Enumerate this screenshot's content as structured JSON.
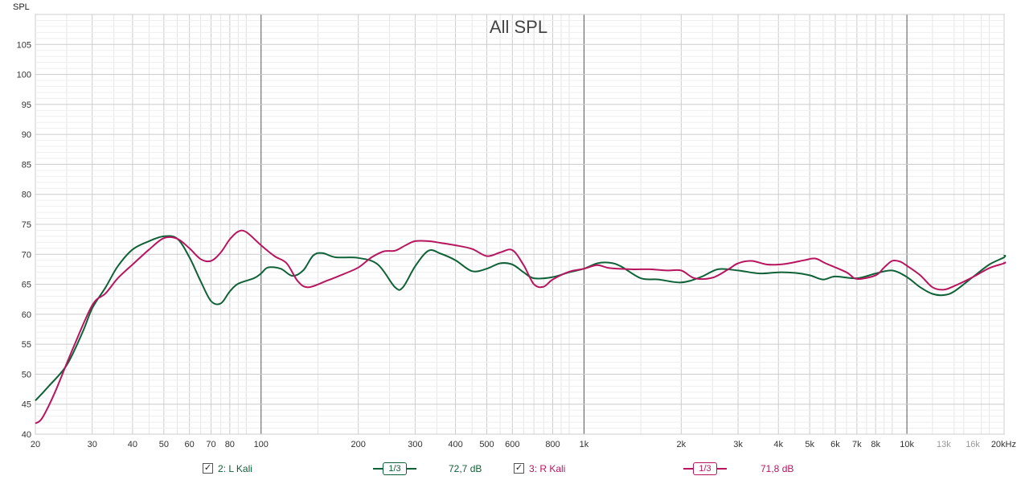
{
  "chart_data": {
    "type": "line",
    "title": "All SPL",
    "ylabel": "SPL",
    "xscale": "log",
    "xlim": [
      20,
      20000
    ],
    "ylim": [
      40,
      110
    ],
    "grid": true,
    "y_ticks": [
      "40",
      "45",
      "50",
      "55",
      "60",
      "65",
      "70",
      "75",
      "80",
      "85",
      "90",
      "95",
      "100",
      "105"
    ],
    "x_ticks": [
      {
        "v": 20,
        "label": "20"
      },
      {
        "v": 30,
        "label": "30"
      },
      {
        "v": 40,
        "label": "40"
      },
      {
        "v": 50,
        "label": "50"
      },
      {
        "v": 60,
        "label": "60"
      },
      {
        "v": 70,
        "label": "70"
      },
      {
        "v": 80,
        "label": "80"
      },
      {
        "v": 100,
        "label": "100"
      },
      {
        "v": 200,
        "label": "200"
      },
      {
        "v": 300,
        "label": "300"
      },
      {
        "v": 400,
        "label": "400"
      },
      {
        "v": 500,
        "label": "500"
      },
      {
        "v": 600,
        "label": "600"
      },
      {
        "v": 800,
        "label": "800"
      },
      {
        "v": 1000,
        "label": "1k"
      },
      {
        "v": 2000,
        "label": "2k"
      },
      {
        "v": 3000,
        "label": "3k"
      },
      {
        "v": 4000,
        "label": "4k"
      },
      {
        "v": 5000,
        "label": "5k"
      },
      {
        "v": 6000,
        "label": "6k"
      },
      {
        "v": 7000,
        "label": "7k"
      },
      {
        "v": 8000,
        "label": "8k"
      },
      {
        "v": 10000,
        "label": "10k"
      },
      {
        "v": 13000,
        "label": "13k",
        "faded": true
      },
      {
        "v": 16000,
        "label": "16k",
        "faded": true
      },
      {
        "v": 20000,
        "label": "20kHz"
      }
    ],
    "series": [
      {
        "name": "2: L Kali",
        "color": "#0f6238",
        "points": [
          [
            20,
            45.6
          ],
          [
            22,
            48
          ],
          [
            25,
            51.5
          ],
          [
            28,
            57
          ],
          [
            30,
            61
          ],
          [
            33,
            64.5
          ],
          [
            36,
            68
          ],
          [
            40,
            70.8
          ],
          [
            45,
            72.2
          ],
          [
            50,
            73
          ],
          [
            55,
            72.6
          ],
          [
            60,
            69.5
          ],
          [
            65,
            65.5
          ],
          [
            70,
            62.2
          ],
          [
            75,
            61.8
          ],
          [
            80,
            63.8
          ],
          [
            85,
            65.1
          ],
          [
            95,
            66
          ],
          [
            100,
            66.8
          ],
          [
            105,
            67.8
          ],
          [
            115,
            67.6
          ],
          [
            125,
            66.4
          ],
          [
            135,
            67.3
          ],
          [
            145,
            69.8
          ],
          [
            155,
            70.2
          ],
          [
            170,
            69.5
          ],
          [
            200,
            69.4
          ],
          [
            230,
            68.3
          ],
          [
            260,
            64.5
          ],
          [
            275,
            64.5
          ],
          [
            300,
            68
          ],
          [
            330,
            70.6
          ],
          [
            360,
            70.1
          ],
          [
            400,
            69
          ],
          [
            450,
            67.2
          ],
          [
            500,
            67.6
          ],
          [
            550,
            68.5
          ],
          [
            600,
            68.3
          ],
          [
            650,
            67
          ],
          [
            700,
            66
          ],
          [
            800,
            66.2
          ],
          [
            900,
            67
          ],
          [
            1000,
            67.6
          ],
          [
            1100,
            68.5
          ],
          [
            1200,
            68.6
          ],
          [
            1300,
            68
          ],
          [
            1500,
            66
          ],
          [
            1700,
            65.8
          ],
          [
            2000,
            65.3
          ],
          [
            2300,
            66.2
          ],
          [
            2600,
            67.5
          ],
          [
            3000,
            67.3
          ],
          [
            3500,
            66.8
          ],
          [
            4000,
            67
          ],
          [
            4500,
            66.9
          ],
          [
            5000,
            66.5
          ],
          [
            5500,
            65.8
          ],
          [
            6000,
            66.3
          ],
          [
            7000,
            66
          ],
          [
            8000,
            66.8
          ],
          [
            9000,
            67.3
          ],
          [
            10000,
            66.2
          ],
          [
            11000,
            64.5
          ],
          [
            12000,
            63.4
          ],
          [
            13000,
            63.2
          ],
          [
            14000,
            63.8
          ],
          [
            16000,
            66.2
          ],
          [
            18000,
            68.3
          ],
          [
            20000,
            69.5
          ],
          [
            21000,
            69.9
          ]
        ]
      },
      {
        "name": "3: R Kali",
        "color": "#b8155f",
        "points": [
          [
            20,
            41.8
          ],
          [
            21,
            42.7
          ],
          [
            23,
            47
          ],
          [
            26,
            54
          ],
          [
            30,
            61.5
          ],
          [
            33,
            63.5
          ],
          [
            36,
            66
          ],
          [
            40,
            68.3
          ],
          [
            45,
            70.8
          ],
          [
            50,
            72.7
          ],
          [
            55,
            72.6
          ],
          [
            60,
            71
          ],
          [
            65,
            69.2
          ],
          [
            70,
            68.9
          ],
          [
            75,
            70.3
          ],
          [
            80,
            72.5
          ],
          [
            85,
            73.8
          ],
          [
            90,
            73.7
          ],
          [
            100,
            71.5
          ],
          [
            110,
            69.7
          ],
          [
            120,
            68.5
          ],
          [
            130,
            65.5
          ],
          [
            140,
            64.5
          ],
          [
            160,
            65.6
          ],
          [
            180,
            66.7
          ],
          [
            200,
            67.8
          ],
          [
            220,
            69.5
          ],
          [
            240,
            70.5
          ],
          [
            260,
            70.6
          ],
          [
            280,
            71.5
          ],
          [
            300,
            72.2
          ],
          [
            330,
            72.2
          ],
          [
            360,
            71.9
          ],
          [
            400,
            71.5
          ],
          [
            450,
            70.9
          ],
          [
            500,
            69.7
          ],
          [
            550,
            70.3
          ],
          [
            600,
            70.7
          ],
          [
            650,
            68.2
          ],
          [
            700,
            65
          ],
          [
            750,
            64.6
          ],
          [
            800,
            65.8
          ],
          [
            900,
            67.1
          ],
          [
            1000,
            67.6
          ],
          [
            1100,
            68.2
          ],
          [
            1200,
            67.7
          ],
          [
            1400,
            67.5
          ],
          [
            1600,
            67.5
          ],
          [
            1800,
            67.3
          ],
          [
            2000,
            67.3
          ],
          [
            2200,
            66
          ],
          [
            2500,
            66.1
          ],
          [
            2800,
            67.5
          ],
          [
            3000,
            68.5
          ],
          [
            3300,
            68.9
          ],
          [
            3700,
            68.3
          ],
          [
            4200,
            68.4
          ],
          [
            4800,
            69
          ],
          [
            5200,
            69.3
          ],
          [
            5600,
            68.5
          ],
          [
            6500,
            67
          ],
          [
            7000,
            65.9
          ],
          [
            8000,
            66.5
          ],
          [
            8500,
            67.8
          ],
          [
            9000,
            68.9
          ],
          [
            9500,
            68.8
          ],
          [
            10000,
            68.1
          ],
          [
            11000,
            66.5
          ],
          [
            12000,
            64.5
          ],
          [
            13000,
            64.1
          ],
          [
            14000,
            64.7
          ],
          [
            16000,
            66.2
          ],
          [
            18000,
            67.7
          ],
          [
            20000,
            68.5
          ],
          [
            21000,
            68.7
          ]
        ]
      }
    ]
  },
  "legend": {
    "items": [
      {
        "label": "2: L Kali",
        "smoothing": "1/3",
        "level": "72,7 dB",
        "color": "#0f6238",
        "checked": "✓"
      },
      {
        "label": "3: R Kali",
        "smoothing": "1/3",
        "level": "71,8 dB",
        "color": "#b8155f",
        "checked": "✓"
      }
    ]
  }
}
